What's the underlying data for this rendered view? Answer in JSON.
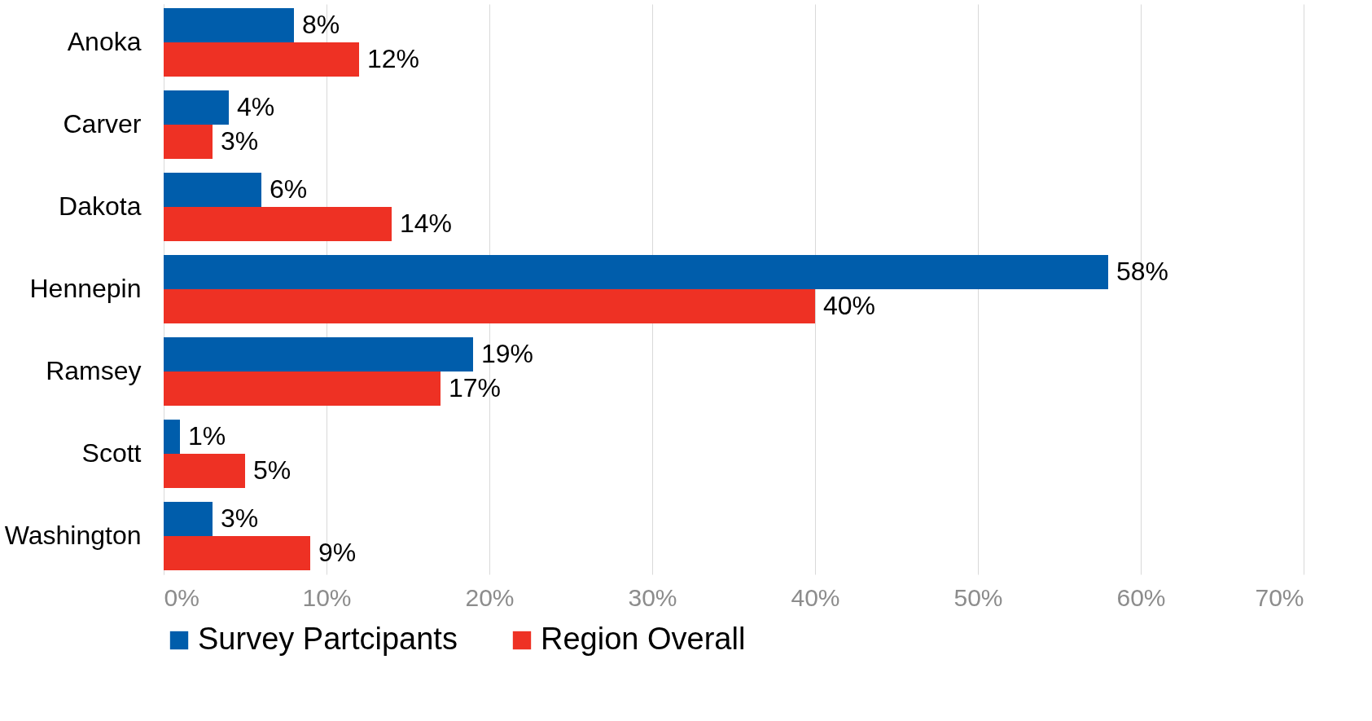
{
  "chart_data": {
    "type": "bar",
    "orientation": "horizontal",
    "categories": [
      "Anoka",
      "Carver",
      "Dakota",
      "Hennepin",
      "Ramsey",
      "Scott",
      "Washington"
    ],
    "series": [
      {
        "name": "Survey Partcipants",
        "color": "#005dab",
        "values": [
          8,
          4,
          6,
          58,
          19,
          1,
          3
        ],
        "value_labels": [
          "8%",
          "4%",
          "6%",
          "58%",
          "19%",
          "1%",
          "3%"
        ]
      },
      {
        "name": "Region Overall",
        "color": "#ee3124",
        "values": [
          12,
          3,
          14,
          40,
          17,
          5,
          9
        ],
        "value_labels": [
          "12%",
          "3%",
          "14%",
          "40%",
          "17%",
          "5%",
          "9%"
        ]
      }
    ],
    "xlim": [
      0,
      70
    ],
    "xticks": [
      {
        "value": 0,
        "label": "0%"
      },
      {
        "value": 10,
        "label": "10%"
      },
      {
        "value": 20,
        "label": "20%"
      },
      {
        "value": 30,
        "label": "30%"
      },
      {
        "value": 40,
        "label": "40%"
      },
      {
        "value": 50,
        "label": "50%"
      },
      {
        "value": 60,
        "label": "60%"
      },
      {
        "value": 70,
        "label": "70%"
      }
    ],
    "grid": "x",
    "legend": "bottom"
  }
}
